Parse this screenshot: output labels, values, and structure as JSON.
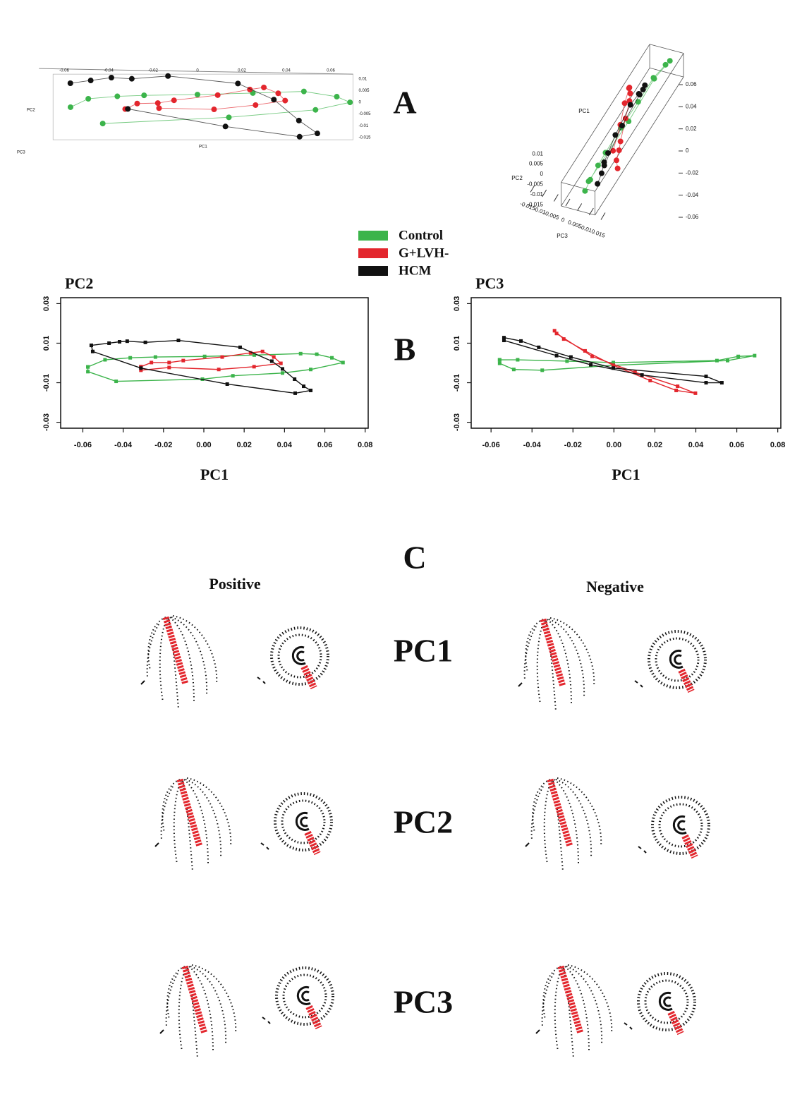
{
  "chart_data": [
    {
      "type": "scatter3d",
      "x_label": "PC1",
      "y_label": "PC2",
      "z_label": "PC3",
      "xlim": [
        -0.065,
        0.07
      ],
      "ylim": [
        -0.016,
        0.012
      ],
      "zlim": [
        -0.016,
        0.016
      ],
      "xticks": [
        -0.06,
        -0.04,
        -0.02,
        0,
        0.02,
        0.04,
        0.06
      ],
      "yticks": [
        0.01,
        0.005,
        0,
        -0.005,
        -0.01,
        -0.015
      ],
      "zticks": [
        -0.015,
        -0.01,
        -0.005,
        0,
        0.005,
        0.01,
        0.015
      ],
      "series": [
        {
          "name": "Control",
          "color": "#3cb44b",
          "x": [
            -0.057,
            -0.049,
            -0.036,
            -0.024,
            0.0,
            0.025,
            0.048,
            0.063,
            0.069,
            0.053,
            0.014,
            -0.043
          ],
          "y": [
            -0.002,
            0.0016,
            0.0026,
            0.003,
            0.0033,
            0.004,
            0.0047,
            0.0026,
            0.0002,
            -0.0033,
            -0.0065,
            -0.0093
          ],
          "z": [
            0.0016,
            0.0016,
            0.0009,
            0.0005,
            0.0002,
            0.001,
            0.0012,
            0.0033,
            0.0037,
            -0.0012,
            -0.0012,
            -0.0037
          ]
        },
        {
          "name": "G+LVH-",
          "color": "#e3262d",
          "x": [
            -0.031,
            -0.026,
            -0.017,
            -0.01,
            0.009,
            0.023,
            0.029,
            0.035,
            0.038,
            0.025,
            0.007,
            -0.017
          ],
          "y": [
            -0.0019,
            0.0002,
            0.0002,
            0.0012,
            0.003,
            0.0051,
            0.0058,
            0.003,
            -0.0002,
            -0.0019,
            -0.0033,
            -0.0023
          ],
          "z": [
            0.0163,
            0.0121,
            0.009,
            0.006,
            -0.001,
            -0.006,
            -0.009,
            -0.0139,
            -0.0153,
            -0.0118,
            -0.0047,
            0.0033
          ]
        },
        {
          "name": "HCM",
          "color": "#111111",
          "x": [
            -0.056,
            -0.047,
            -0.038,
            -0.029,
            -0.013,
            0.018,
            0.034,
            0.045,
            0.053,
            0.045,
            0.012,
            -0.031
          ],
          "y": [
            0.0089,
            0.01,
            0.011,
            0.0104,
            0.0114,
            0.0079,
            0.0009,
            -0.0082,
            -0.0139,
            -0.0153,
            -0.0107,
            -0.0026
          ],
          "z": [
            0.0128,
            0.0111,
            0.0079,
            0.006,
            0.003,
            -0.002,
            -0.004,
            -0.0068,
            -0.01,
            -0.01,
            -0.0061,
            0.0037
          ]
        }
      ]
    },
    {
      "type": "line",
      "y_label": "PC2",
      "x_label": "PC1",
      "xlim": [
        -0.071,
        0.0815
      ],
      "ylim": [
        -0.033,
        0.033
      ],
      "xticks": [
        -0.06,
        -0.04,
        -0.02,
        {
          "value": 0,
          "label": "0.00"
        },
        0.02,
        0.04,
        0.06,
        0.08
      ],
      "yticks": [
        0.03,
        0.01,
        -0.01,
        -0.03
      ],
      "series": [
        {
          "name": "Control",
          "color": "#3cb44b",
          "x": [
            -0.0575,
            -0.049,
            -0.0365,
            -0.024,
            0.0004,
            0.025,
            0.048,
            0.056,
            0.0635,
            0.069,
            0.053,
            0.039,
            0.0144,
            -0.0007,
            -0.0435,
            -0.0575,
            -0.0575
          ],
          "y": [
            -0.002,
            0.0016,
            0.0026,
            0.003,
            0.0033,
            0.004,
            0.0047,
            0.0044,
            0.0026,
            0.0002,
            -0.0033,
            -0.0051,
            -0.0065,
            -0.0082,
            -0.0093,
            -0.0044,
            -0.002
          ]
        },
        {
          "name": "G+LVH-",
          "color": "#e3262d",
          "x": [
            -0.0312,
            -0.026,
            -0.0172,
            -0.0102,
            0.0091,
            0.0232,
            0.0291,
            0.0347,
            0.0382,
            0.0249,
            0.0074,
            -0.0172,
            -0.0312,
            -0.0312
          ],
          "y": [
            -0.0019,
            0.0002,
            0.0002,
            0.0012,
            0.003,
            0.0051,
            0.0058,
            0.003,
            -0.0002,
            -0.0019,
            -0.0033,
            -0.0023,
            -0.0037,
            -0.0019
          ]
        },
        {
          "name": "HCM",
          "color": "#111111",
          "x": [
            -0.0558,
            -0.047,
            -0.0418,
            -0.038,
            -0.029,
            -0.0126,
            0.018,
            0.0337,
            0.039,
            0.045,
            0.0495,
            0.053,
            0.0453,
            0.0116,
            -0.0312,
            -0.0551,
            -0.0558
          ],
          "y": [
            0.0089,
            0.01,
            0.0107,
            0.011,
            0.0104,
            0.0114,
            0.0079,
            0.0009,
            -0.003,
            -0.0082,
            -0.0118,
            -0.0139,
            -0.0153,
            -0.0107,
            -0.0026,
            0.0058,
            0.0089
          ]
        }
      ]
    },
    {
      "type": "line",
      "y_label": "PC3",
      "x_label": "PC1",
      "xlim": [
        -0.0697,
        0.0815
      ],
      "ylim": [
        -0.033,
        0.033
      ],
      "xticks": [
        -0.06,
        -0.04,
        -0.02,
        {
          "value": 0,
          "label": "0.00"
        },
        0.02,
        0.04,
        0.06,
        0.08
      ],
      "yticks": [
        0.03,
        0.01,
        -0.01,
        -0.03
      ],
      "series": [
        {
          "name": "Control",
          "color": "#3cb44b",
          "x": [
            -0.0558,
            -0.047,
            -0.0229,
            -0.0003,
            0.0503,
            0.0607,
            0.0687,
            0.0555,
            -0.0003,
            -0.035,
            -0.0489,
            -0.0558,
            -0.0558
          ],
          "y": [
            0.0016,
            0.0016,
            0.0009,
            0.0002,
            0.0012,
            0.0033,
            0.0037,
            0.0012,
            -0.0012,
            -0.0037,
            -0.0033,
            -0.0002,
            0.0016
          ]
        },
        {
          "name": "G+LVH-",
          "color": "#e3262d",
          "x": [
            -0.029,
            -0.0245,
            -0.0141,
            -0.0003,
            0.0177,
            0.0304,
            0.0398,
            0.0311,
            0.0103,
            -0.0106,
            -0.028
          ],
          "y": [
            0.0163,
            0.0121,
            0.0061,
            -0.0012,
            -0.0089,
            -0.0139,
            -0.0153,
            -0.0118,
            -0.0047,
            0.0033,
            0.0149
          ]
        },
        {
          "name": "HCM",
          "color": "#111111",
          "x": [
            -0.0537,
            -0.0454,
            -0.0367,
            -0.021,
            -0.0003,
            0.045,
            0.0527,
            0.045,
            0.0137,
            -0.0113,
            -0.028,
            -0.0537
          ],
          "y": [
            0.0128,
            0.0111,
            0.0079,
            0.003,
            -0.0026,
            -0.0068,
            -0.01,
            -0.01,
            -0.0061,
            -0.0009,
            0.0037,
            0.0114
          ]
        }
      ]
    }
  ],
  "panel_labels": [
    "A",
    "B",
    "C"
  ],
  "figure_c": {
    "columns": [
      "Positive",
      "Negative"
    ],
    "rows": [
      "PC1",
      "PC2",
      "PC3"
    ]
  }
}
